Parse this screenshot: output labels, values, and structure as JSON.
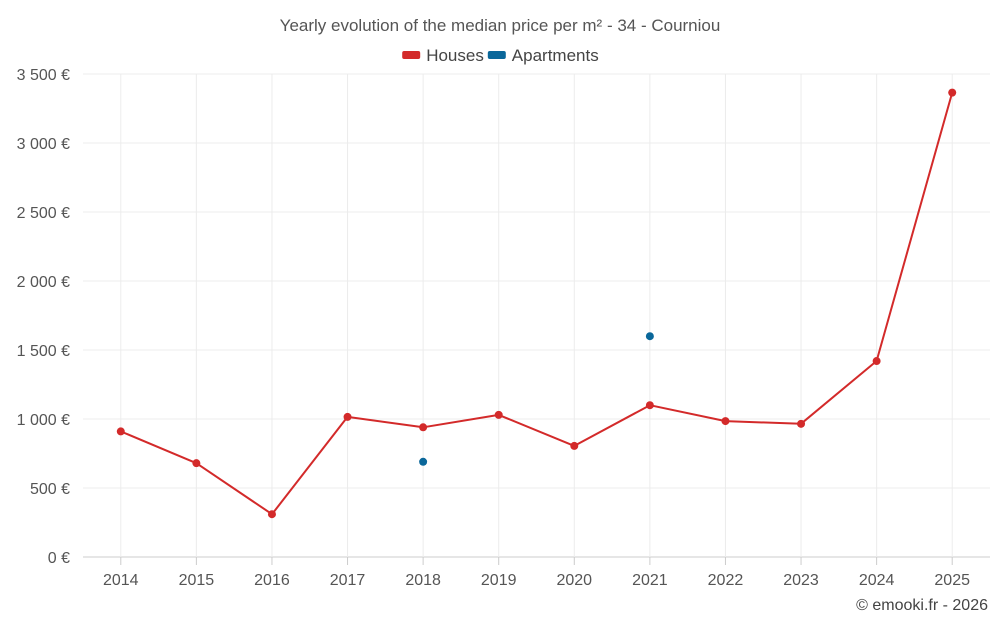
{
  "chart_data": {
    "type": "line",
    "title": "Yearly evolution of the median price per m² - 34 - Courniou",
    "categories": [
      "2014",
      "2015",
      "2016",
      "2017",
      "2018",
      "2019",
      "2020",
      "2021",
      "2022",
      "2023",
      "2024",
      "2025"
    ],
    "series": [
      {
        "name": "Houses",
        "color": "#d32a2a",
        "values": [
          910,
          680,
          310,
          1015,
          940,
          1030,
          805,
          1100,
          985,
          965,
          1420,
          3365
        ]
      },
      {
        "name": "Apartments",
        "color": "#0a679a",
        "values": [
          null,
          null,
          null,
          null,
          690,
          null,
          null,
          1600,
          null,
          null,
          null,
          null
        ]
      }
    ],
    "ylim": [
      0,
      3500
    ],
    "yticks": [
      0,
      500,
      1000,
      1500,
      2000,
      2500,
      3000,
      3500
    ],
    "ytick_labels": [
      "0 €",
      "500 €",
      "1 000 €",
      "1 500 €",
      "2 000 €",
      "2 500 €",
      "3 000 €",
      "3 500 €"
    ],
    "grid": true,
    "legend_position": "top-center",
    "xlabel": "",
    "ylabel": ""
  },
  "credit": "© emooki.fr - 2026"
}
